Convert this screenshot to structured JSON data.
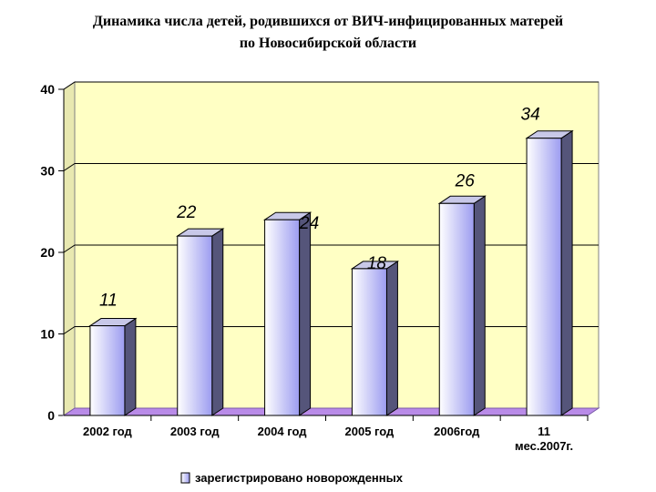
{
  "title": {
    "line1": "Динамика числа детей, родившихся  от ВИЧ-инфицированных матерей",
    "line2": "по Новосибирской области"
  },
  "colors": {
    "wall": "#FFFFC4",
    "floor": "#B98BE8",
    "bar_light": "#FFFFFF",
    "bar_dark": "#9C9CF0",
    "bar_side": "#55557A",
    "bar_top": "#C8C8E8",
    "gridline": "#000000"
  },
  "chart_data": {
    "type": "bar",
    "categories": [
      "2002 год",
      "2003 год",
      "2004 год",
      "2005 год",
      "2006год",
      "11 мес.2007г."
    ],
    "category_lines": [
      [
        "2002 год"
      ],
      [
        "2003 год"
      ],
      [
        "2004 год"
      ],
      [
        "2005 год"
      ],
      [
        "2006год"
      ],
      [
        "11",
        "мес.2007г."
      ]
    ],
    "series": [
      {
        "name": "зарегистрировано новорожденных",
        "values": [
          11,
          22,
          24,
          18,
          26,
          34
        ]
      }
    ],
    "data_labels": [
      "11",
      "22",
      "24",
      "18",
      "26",
      "34"
    ],
    "ylim": [
      0,
      40
    ],
    "yticks": [
      0,
      10,
      20,
      30,
      40
    ],
    "grid": true,
    "legend_position": "bottom",
    "style": "3d-column"
  }
}
